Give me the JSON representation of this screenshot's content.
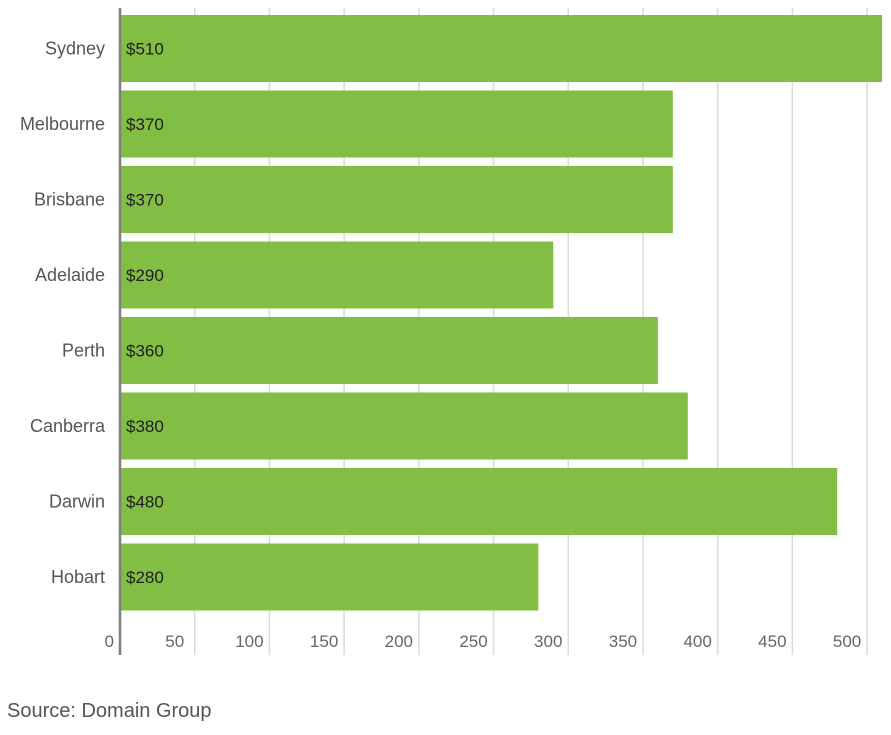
{
  "chart_data": {
    "type": "bar",
    "orientation": "horizontal",
    "categories": [
      "Sydney",
      "Melbourne",
      "Brisbane",
      "Adelaide",
      "Perth",
      "Canberra",
      "Darwin",
      "Hobart"
    ],
    "values": [
      510,
      370,
      370,
      290,
      360,
      380,
      480,
      280
    ],
    "data_labels": [
      "$510",
      "$370",
      "$370",
      "$290",
      "$360",
      "$380",
      "$480",
      "$280"
    ],
    "xticks": [
      0,
      50,
      100,
      150,
      200,
      250,
      300,
      350,
      400,
      450,
      500
    ],
    "xlim": [
      0,
      510
    ],
    "grid": true,
    "bar_color": "#82bd44",
    "grid_color": "#d9d9d9",
    "axis_color": "#7f7f7f",
    "legend": "none"
  },
  "source": "Source: Domain Group"
}
